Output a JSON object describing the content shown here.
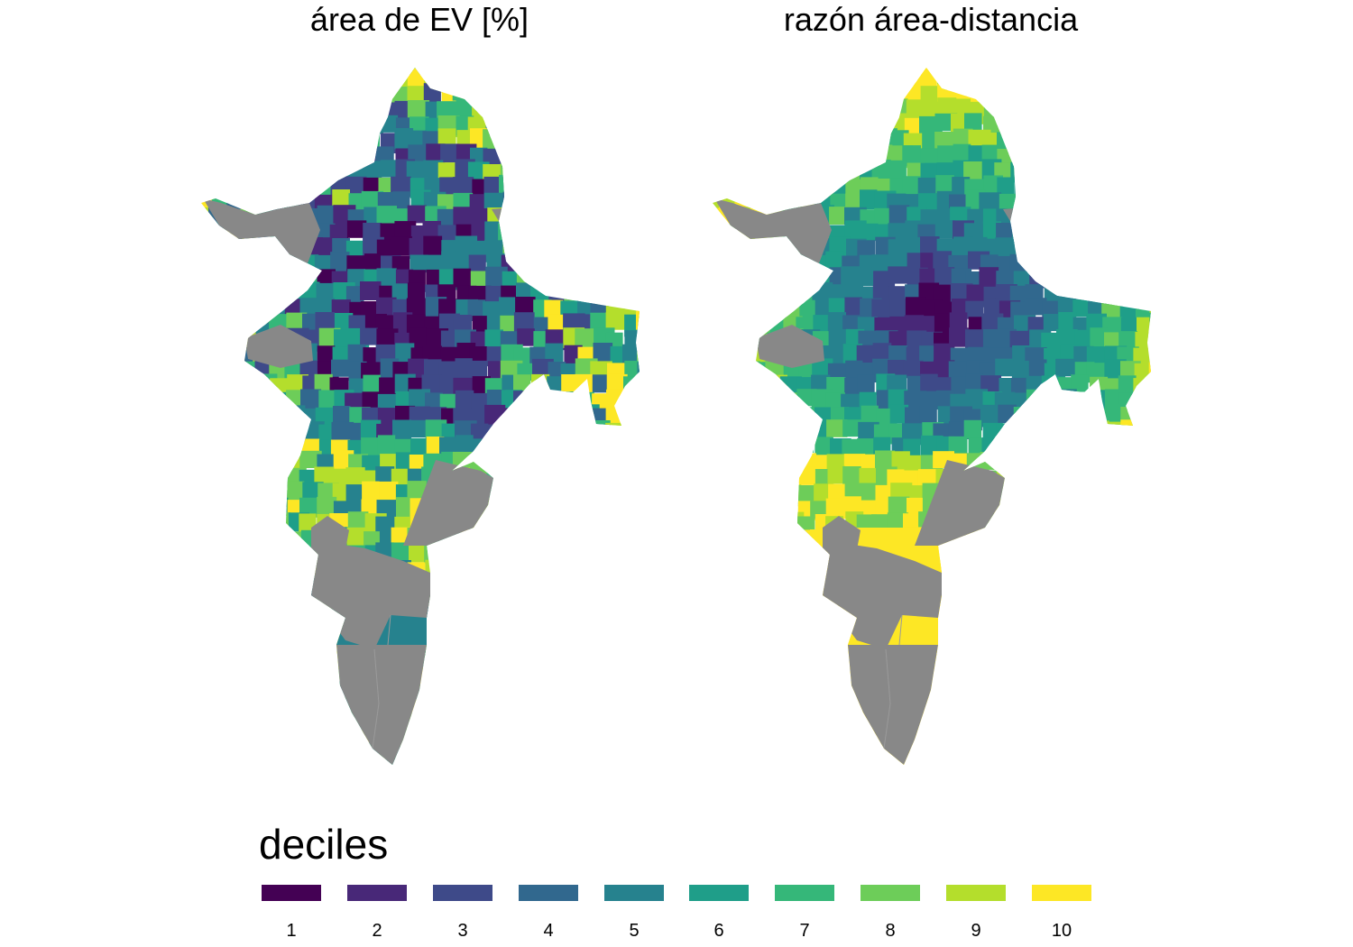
{
  "panels": [
    {
      "title": "área de EV [%]"
    },
    {
      "title": "razón área-distancia"
    }
  ],
  "legend": {
    "title": "deciles",
    "items": [
      {
        "label": "1",
        "color": "#440154"
      },
      {
        "label": "2",
        "color": "#482878"
      },
      {
        "label": "3",
        "color": "#3E4A89"
      },
      {
        "label": "4",
        "color": "#31688E"
      },
      {
        "label": "5",
        "color": "#26828E"
      },
      {
        "label": "6",
        "color": "#1F9E89"
      },
      {
        "label": "7",
        "color": "#35B779"
      },
      {
        "label": "8",
        "color": "#6DCD59"
      },
      {
        "label": "9",
        "color": "#B4DE2C"
      },
      {
        "label": "10",
        "color": "#FDE725"
      }
    ],
    "na_color": "#888888"
  }
}
